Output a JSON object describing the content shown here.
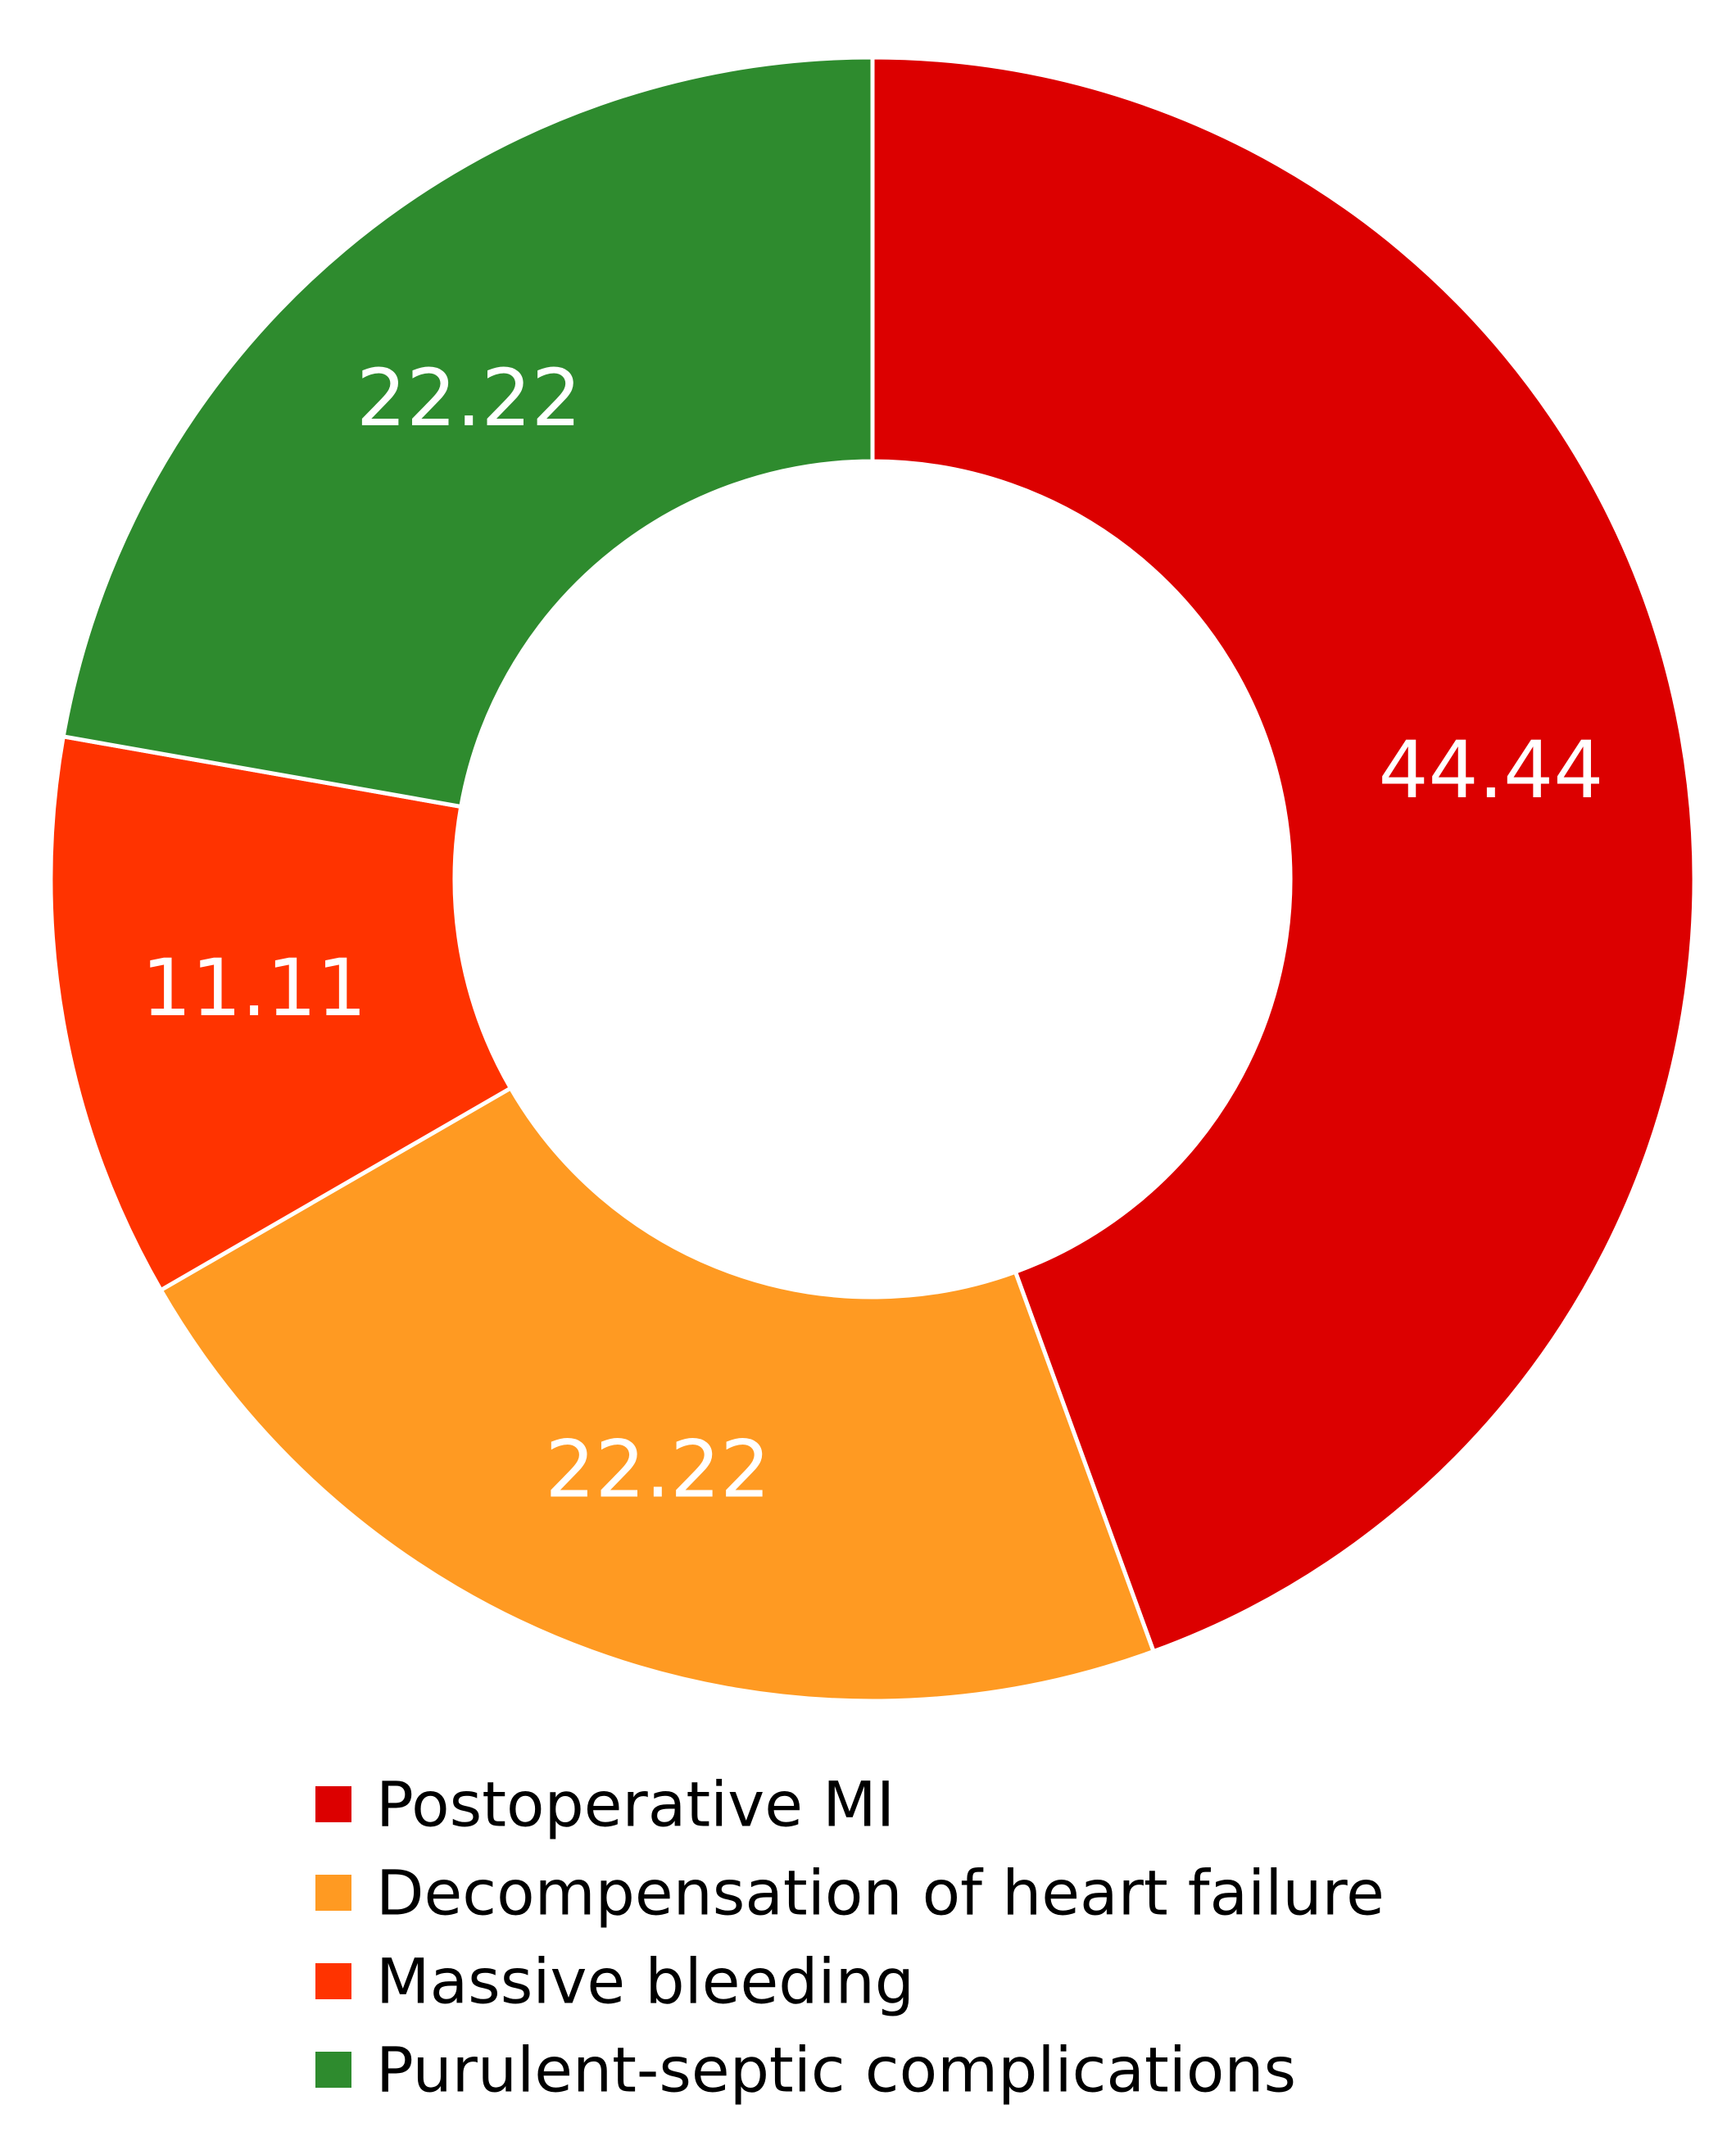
{
  "chart_data": {
    "type": "pie",
    "donut": true,
    "title": "",
    "categories": [
      "Postoperative MI",
      "Decompensation of heart failure",
      "Massive bleeding",
      "Purulent-septic complications"
    ],
    "values": [
      44.44,
      22.22,
      11.11,
      22.22
    ],
    "labels": [
      "44.44",
      "22.22",
      "11.11",
      "22.22"
    ],
    "colors": [
      "#dc0000",
      "#ff9a22",
      "#ff3300",
      "#2e8b2e"
    ],
    "start_angle": "12 o'clock",
    "direction": "clockwise",
    "legend_position": "bottom-center"
  }
}
